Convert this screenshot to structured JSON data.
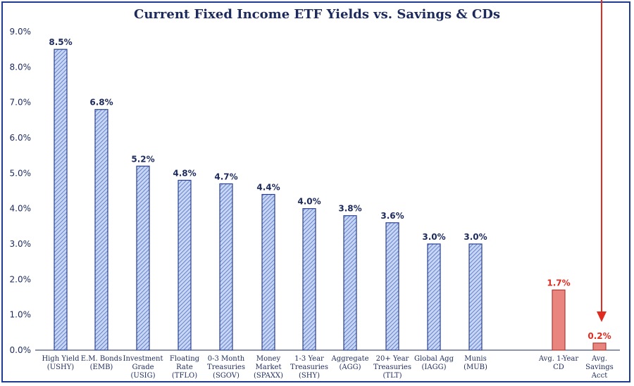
{
  "chart_data": {
    "type": "bar",
    "title": "Current Fixed Income ETF Yields vs. Savings & CDs",
    "xlabel": "",
    "ylabel": "",
    "ylim": [
      0,
      9
    ],
    "yticks": [
      "0.0%",
      "1.0%",
      "2.0%",
      "3.0%",
      "4.0%",
      "5.0%",
      "6.0%",
      "7.0%",
      "8.0%",
      "9.0%"
    ],
    "grid": false,
    "legend": "none",
    "categories": [
      [
        "High Yield",
        "(USHY)"
      ],
      [
        "E.M. Bonds",
        "(EMB)"
      ],
      [
        "Investment",
        "Grade",
        "(USIG)"
      ],
      [
        "Floating",
        "Rate",
        "(TFLO)"
      ],
      [
        "0-3 Month",
        "Treasuries",
        "(SGOV)"
      ],
      [
        "Money",
        "Market",
        "(SPAXX)"
      ],
      [
        "1-3 Year",
        "Treasuries",
        "(SHY)"
      ],
      [
        "Aggregate",
        "(AGG)"
      ],
      [
        "20+ Year",
        "Treasuries",
        "(TLT)"
      ],
      [
        "Global Agg",
        "(IAGG)"
      ],
      [
        "Munis",
        "(MUB)"
      ],
      [
        "Avg. 1-Year",
        "CD"
      ],
      [
        "Avg.",
        "Savings",
        "Acct"
      ]
    ],
    "values": [
      8.5,
      6.8,
      5.2,
      4.8,
      4.7,
      4.4,
      4.0,
      3.8,
      3.6,
      3.0,
      3.0,
      1.7,
      0.2
    ],
    "data_labels": [
      "8.5%",
      "6.8%",
      "5.2%",
      "4.8%",
      "4.7%",
      "4.4%",
      "4.0%",
      "3.8%",
      "3.6%",
      "3.0%",
      "3.0%",
      "1.7%",
      "0.2%"
    ],
    "groups": [
      "etf",
      "etf",
      "etf",
      "etf",
      "etf",
      "etf",
      "etf",
      "etf",
      "etf",
      "etf",
      "etf",
      "bank",
      "bank"
    ],
    "colors": {
      "etf_fill": "#c9d6f2",
      "etf_stripe": "#4a6fc9",
      "etf_stroke": "#2a3f8f",
      "bank_fill": "#e8857f",
      "bank_stroke": "#b03a33",
      "etf_label": "#1c2a5c",
      "bank_label": "#e02b20",
      "axis": "#1c2a5c",
      "arrow": "#e02b20",
      "border": "#1f3a93"
    },
    "annotation": "red-down-arrow-pointing-to-savings-bar"
  }
}
